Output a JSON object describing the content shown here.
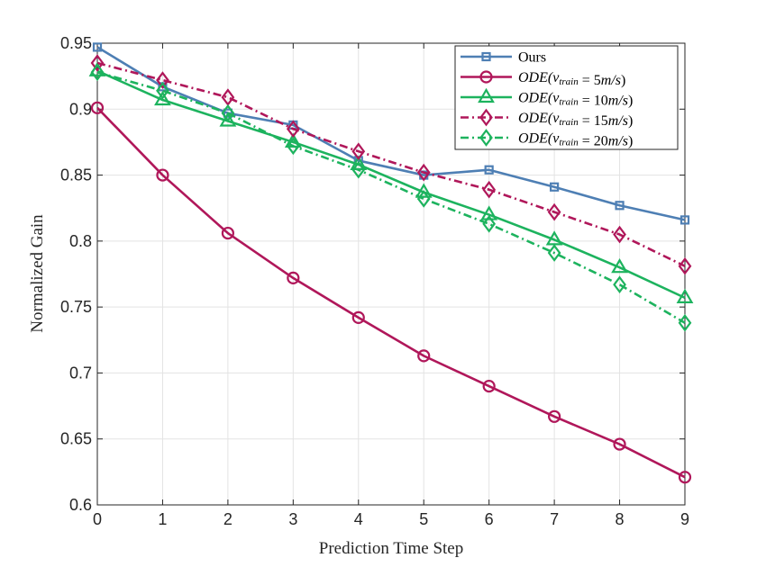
{
  "chart_data": {
    "type": "line",
    "title": "",
    "xlabel": "Prediction Time Step",
    "ylabel": "Normalized Gain",
    "xlim": [
      0,
      9
    ],
    "ylim": [
      0.6,
      0.95
    ],
    "x": [
      0,
      1,
      2,
      3,
      4,
      5,
      6,
      7,
      8,
      9
    ],
    "x_ticks": [
      "0",
      "1",
      "2",
      "3",
      "4",
      "5",
      "6",
      "7",
      "8",
      "9"
    ],
    "y_ticks": [
      "0.6",
      "0.65",
      "0.7",
      "0.75",
      "0.8",
      "0.85",
      "0.9",
      "0.95"
    ],
    "y_tick_values": [
      0.6,
      0.65,
      0.7,
      0.75,
      0.8,
      0.85,
      0.9,
      0.95
    ],
    "grid": true,
    "legend_position": "top-right",
    "series": [
      {
        "name": "Ours",
        "legend_parts": [
          {
            "t": "Ours",
            "s": "n"
          }
        ],
        "color": "#4e7fb4",
        "marker": "square",
        "dash": "solid",
        "values": [
          0.947,
          0.917,
          0.897,
          0.888,
          0.861,
          0.85,
          0.854,
          0.841,
          0.827,
          0.816
        ]
      },
      {
        "name": "ODE(v_train = 5m/s)",
        "legend_parts": [
          {
            "t": "ODE(",
            "s": "i"
          },
          {
            "t": "v",
            "s": "i"
          },
          {
            "t": "train",
            "s": "sub"
          },
          {
            "t": " = 5",
            "s": "n"
          },
          {
            "t": "m/s",
            "s": "i"
          },
          {
            "t": ")",
            "s": "n"
          }
        ],
        "color": "#b0175a",
        "marker": "circle",
        "dash": "solid",
        "values": [
          0.901,
          0.85,
          0.806,
          0.772,
          0.742,
          0.713,
          0.69,
          0.667,
          0.646,
          0.621
        ]
      },
      {
        "name": "ODE(v_train = 10m/s)",
        "legend_parts": [
          {
            "t": "ODE(",
            "s": "i"
          },
          {
            "t": "v",
            "s": "i"
          },
          {
            "t": "train",
            "s": "sub"
          },
          {
            "t": " = 10",
            "s": "n"
          },
          {
            "t": "m/s",
            "s": "i"
          },
          {
            "t": ")",
            "s": "n"
          }
        ],
        "color": "#1db35e",
        "marker": "triangle",
        "dash": "solid",
        "values": [
          0.929,
          0.907,
          0.891,
          0.875,
          0.858,
          0.837,
          0.82,
          0.801,
          0.78,
          0.757
        ]
      },
      {
        "name": "ODE(v_train = 15m/s)",
        "legend_parts": [
          {
            "t": "ODE(",
            "s": "i"
          },
          {
            "t": "v",
            "s": "i"
          },
          {
            "t": "train",
            "s": "sub"
          },
          {
            "t": " = 15",
            "s": "n"
          },
          {
            "t": "m/s",
            "s": "i"
          },
          {
            "t": ")",
            "s": "n"
          }
        ],
        "color": "#b0175a",
        "marker": "diamond",
        "dash": "dashdot",
        "values": [
          0.935,
          0.922,
          0.909,
          0.885,
          0.868,
          0.852,
          0.839,
          0.822,
          0.805,
          0.781
        ]
      },
      {
        "name": "ODE(v_train = 20m/s)",
        "legend_parts": [
          {
            "t": "ODE(",
            "s": "i"
          },
          {
            "t": "v",
            "s": "i"
          },
          {
            "t": "train",
            "s": "sub"
          },
          {
            "t": " = 20",
            "s": "n"
          },
          {
            "t": "m/s",
            "s": "i"
          },
          {
            "t": ")",
            "s": "n"
          }
        ],
        "color": "#1db35e",
        "marker": "diamond",
        "dash": "dashdot",
        "values": [
          0.928,
          0.914,
          0.897,
          0.872,
          0.854,
          0.832,
          0.813,
          0.791,
          0.767,
          0.738
        ]
      }
    ]
  }
}
